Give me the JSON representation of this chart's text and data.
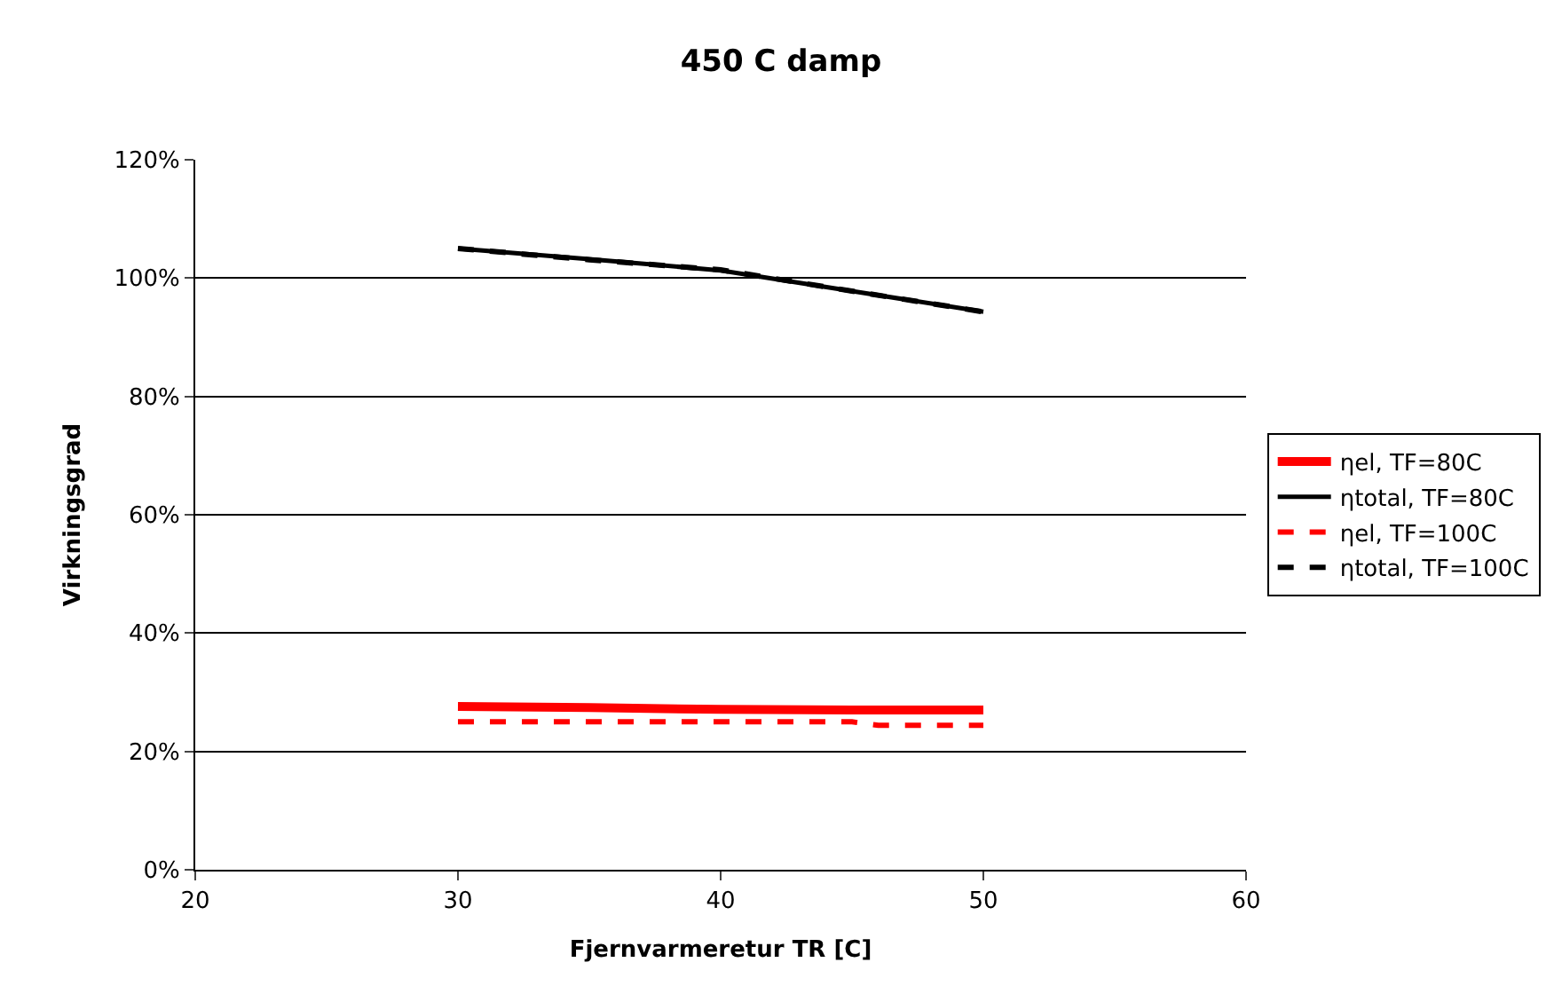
{
  "chart_data": {
    "type": "line",
    "title": "450 C damp",
    "xlabel": "Fjernvarmeretur TR [C]",
    "ylabel": "Virkningsgrad",
    "x": [
      30,
      35,
      40,
      45,
      50
    ],
    "series": [
      {
        "name": "ηel, TF=80C",
        "color": "#ff0000",
        "values": [
          27.6,
          27.4,
          27.1,
          27.0,
          27.0
        ],
        "line_style": "solid"
      },
      {
        "name": "ηtotal, TF=80C",
        "color": "#000000",
        "values": [
          105,
          103.2,
          101.3,
          97.8,
          94.3
        ],
        "line_style": "solid"
      },
      {
        "name": "ηel, TF=100C",
        "color": "#ff0000",
        "x": [
          30,
          40,
          45,
          46,
          50
        ],
        "values": [
          25.0,
          25.0,
          25.0,
          24.4,
          24.4
        ],
        "line_style": "dashed"
      },
      {
        "name": "ηtotal, TF=100C",
        "color": "#000000",
        "values": [
          105,
          103.1,
          101.4,
          97.8,
          94.3
        ],
        "line_style": "dashed"
      }
    ],
    "xlim": [
      20,
      60
    ],
    "xticks": [
      20,
      30,
      40,
      50,
      60
    ],
    "ylim": [
      0,
      120
    ],
    "yticks": [
      {
        "value": 0,
        "label": "0%"
      },
      {
        "value": 20,
        "label": "20%"
      },
      {
        "value": 40,
        "label": "40%"
      },
      {
        "value": 60,
        "label": "60%"
      },
      {
        "value": 80,
        "label": "80%"
      },
      {
        "value": 100,
        "label": "100%"
      },
      {
        "value": 120,
        "label": "120%"
      }
    ],
    "grid": "y",
    "legend": "right",
    "marker": "none"
  }
}
